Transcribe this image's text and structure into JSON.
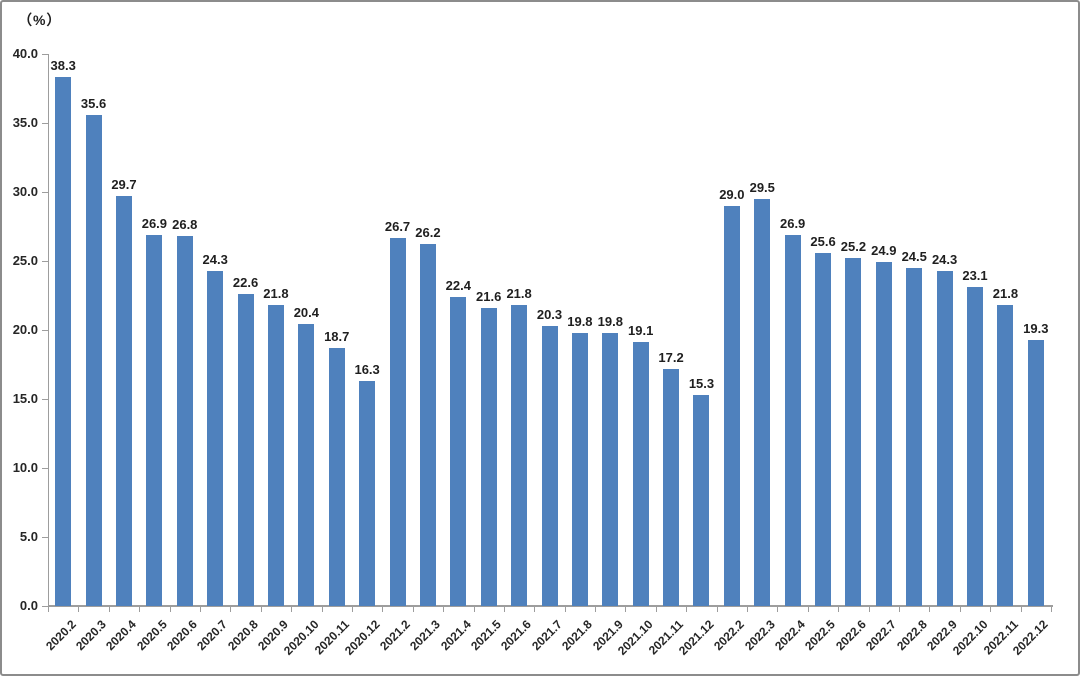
{
  "chart_data": {
    "type": "bar",
    "title": "",
    "unit_label": "（%）",
    "xlabel": "",
    "ylabel": "",
    "ylim": [
      0,
      40
    ],
    "ytick_step": 5,
    "ytick_labels": [
      "0.0",
      "5.0",
      "10.0",
      "15.0",
      "20.0",
      "25.0",
      "30.0",
      "35.0",
      "40.0"
    ],
    "grid": false,
    "legend": null,
    "bar_color": "#4f81bd",
    "axis_color": "#9d9d9d",
    "data_labels_shown": true,
    "categories": [
      "2020.2",
      "2020.3",
      "2020.4",
      "2020.5",
      "2020.6",
      "2020.7",
      "2020.8",
      "2020.9",
      "2020.10",
      "2020.11",
      "2020.12",
      "2021.2",
      "2021.3",
      "2021.4",
      "2021.5",
      "2021.6",
      "2021.7",
      "2021.8",
      "2021.9",
      "2021.10",
      "2021.11",
      "2021.12",
      "2022.2",
      "2022.3",
      "2022.4",
      "2022.5",
      "2022.6",
      "2022.7",
      "2022.8",
      "2022.9",
      "2022.10",
      "2022.11",
      "2022.12"
    ],
    "values": [
      38.3,
      35.6,
      29.7,
      26.9,
      26.8,
      24.3,
      22.6,
      21.8,
      20.4,
      18.7,
      16.3,
      26.7,
      26.2,
      22.4,
      21.6,
      21.8,
      20.3,
      19.8,
      19.8,
      19.1,
      17.2,
      15.3,
      29.0,
      29.5,
      26.9,
      25.6,
      25.2,
      24.9,
      24.5,
      24.3,
      23.1,
      21.8,
      19.3
    ]
  }
}
